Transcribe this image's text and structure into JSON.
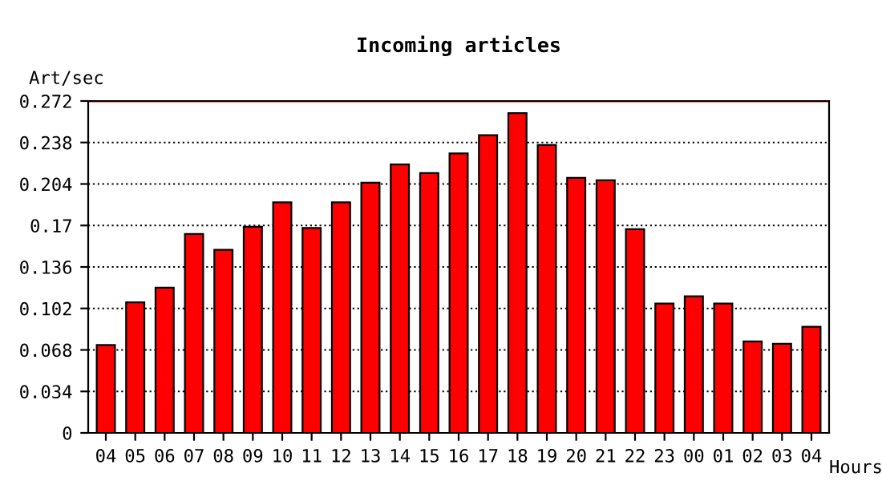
{
  "chart_data": {
    "type": "bar",
    "title": "Incoming articles",
    "ylabel": "Art/sec",
    "xlabel": "Hours",
    "categories": [
      "04",
      "05",
      "06",
      "07",
      "08",
      "09",
      "10",
      "11",
      "12",
      "13",
      "14",
      "15",
      "16",
      "17",
      "18",
      "19",
      "20",
      "21",
      "22",
      "23",
      "00",
      "01",
      "02",
      "03",
      "04"
    ],
    "values": [
      0.072,
      0.107,
      0.119,
      0.163,
      0.15,
      0.169,
      0.189,
      0.168,
      0.189,
      0.205,
      0.22,
      0.213,
      0.229,
      0.244,
      0.262,
      0.236,
      0.209,
      0.207,
      0.167,
      0.106,
      0.112,
      0.106,
      0.075,
      0.073,
      0.087
    ],
    "color": "#ff0000",
    "ylim": [
      0,
      0.272
    ],
    "yticks": [
      0,
      0.034,
      0.068,
      0.102,
      0.136,
      0.17,
      0.204,
      0.238,
      0.272
    ],
    "grid": "y",
    "line_style": "dotted",
    "ref_lines": [
      {
        "axis": "y",
        "value": 0.272,
        "color": "#ff0000",
        "line_style": "solid"
      }
    ]
  }
}
